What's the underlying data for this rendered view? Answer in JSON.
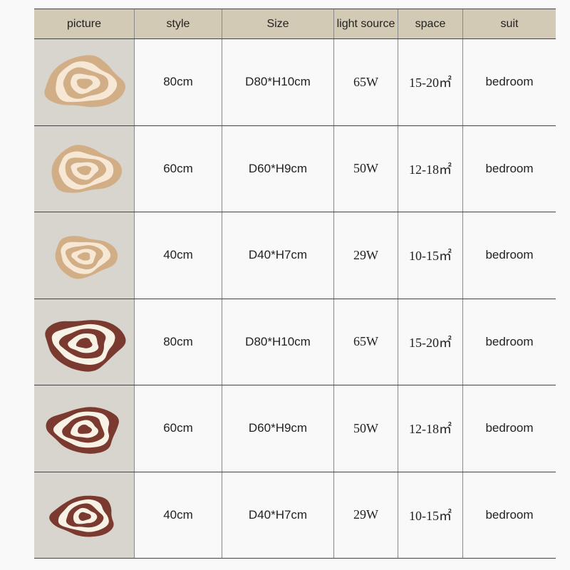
{
  "headers": [
    "picture",
    "style",
    "Size",
    "light source",
    "space",
    "suit"
  ],
  "rows": [
    {
      "finish": "wood",
      "style": "80cm",
      "size": "D80*H10cm",
      "light": "65W",
      "space": "15-20㎡",
      "suit": "bedroom"
    },
    {
      "finish": "wood",
      "style": "60cm",
      "size": "D60*H9cm",
      "light": "50W",
      "space": "12-18㎡",
      "suit": "bedroom"
    },
    {
      "finish": "wood",
      "style": "40cm",
      "size": "D40*H7cm",
      "light": "29W",
      "space": "10-15㎡",
      "suit": "bedroom"
    },
    {
      "finish": "brown",
      "style": "80cm",
      "size": "D80*H10cm",
      "light": "65W",
      "space": "15-20㎡",
      "suit": "bedroom"
    },
    {
      "finish": "brown",
      "style": "60cm",
      "size": "D60*H9cm",
      "light": "50W",
      "space": "12-18㎡",
      "suit": "bedroom"
    },
    {
      "finish": "brown",
      "style": "40cm",
      "size": "D40*H7cm",
      "light": "29W",
      "space": "10-15㎡",
      "suit": "bedroom"
    }
  ],
  "colors": {
    "header_bg": "#d3cab6",
    "wood": "#d2ae86",
    "wood_light": "#f6e8d4",
    "brown": "#7b3a2f",
    "cream": "#f8f2e6"
  }
}
